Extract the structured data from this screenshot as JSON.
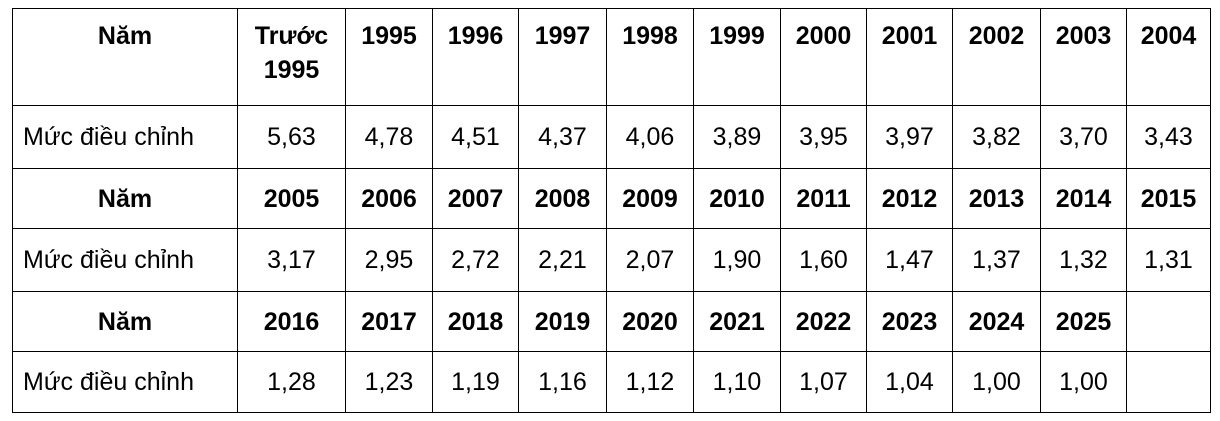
{
  "table": {
    "rows": [
      [
        "Năm",
        "Trước 1995",
        "1995",
        "1996",
        "1997",
        "1998",
        "1999",
        "2000",
        "2001",
        "2002",
        "2003",
        "2004"
      ],
      [
        "Mức điều chỉnh",
        "5,63",
        "4,78",
        "4,51",
        "4,37",
        "4,06",
        "3,89",
        "3,95",
        "3,97",
        "3,82",
        "3,70",
        "3,43"
      ],
      [
        "Năm",
        "2005",
        "2006",
        "2007",
        "2008",
        "2009",
        "2010",
        "2011",
        "2012",
        "2013",
        "2014",
        "2015"
      ],
      [
        "Mức điều chỉnh",
        "3,17",
        "2,95",
        "2,72",
        "2,21",
        "2,07",
        "1,90",
        "1,60",
        "1,47",
        "1,37",
        "1,32",
        "1,31"
      ],
      [
        "Năm",
        "2016",
        "2017",
        "2018",
        "2019",
        "2020",
        "2021",
        "2022",
        "2023",
        "2024",
        "2025"
      ],
      [
        "Mức điều chỉnh",
        "1,28",
        "1,23",
        "1,19",
        "1,16",
        "1,12",
        "1,10",
        "1,07",
        "1,04",
        "1,00",
        "1,00"
      ]
    ]
  }
}
